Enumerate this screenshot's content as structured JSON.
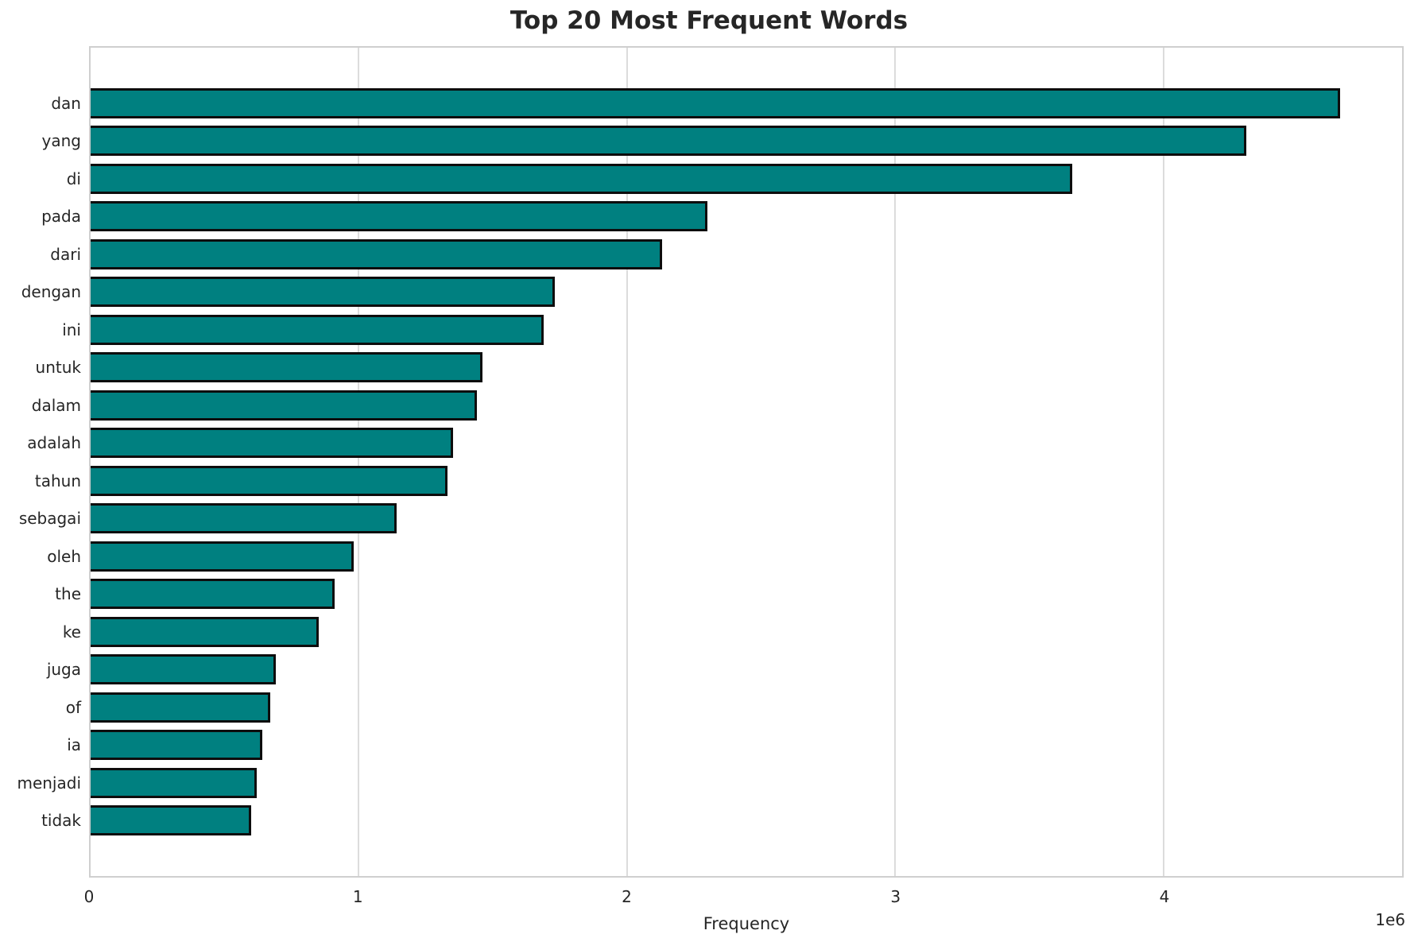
{
  "figure": {
    "title": "Top 20 Most Frequent Words",
    "xlabel": "Frequency",
    "offset_label": "1e6"
  },
  "chart_data": {
    "type": "bar",
    "orientation": "horizontal",
    "title": "Top 20 Most Frequent Words",
    "xlabel": "Frequency",
    "ylabel": "",
    "categories": [
      "dan",
      "yang",
      "di",
      "pada",
      "dari",
      "dengan",
      "ini",
      "untuk",
      "dalam",
      "adalah",
      "tahun",
      "sebagai",
      "oleh",
      "the",
      "ke",
      "juga",
      "of",
      "ia",
      "menjadi",
      "tidak"
    ],
    "values": [
      4660000,
      4310000,
      3660000,
      2300000,
      2130000,
      1730000,
      1690000,
      1460000,
      1440000,
      1350000,
      1330000,
      1140000,
      980000,
      910000,
      850000,
      690000,
      670000,
      640000,
      620000,
      600000
    ],
    "xlim": [
      0,
      4890000
    ],
    "xticks": [
      0,
      1000000,
      2000000,
      3000000,
      4000000
    ],
    "xtick_labels": [
      "0",
      "1",
      "2",
      "3",
      "4"
    ],
    "x_offset_text": "1e6",
    "grid": true,
    "grid_axis": "x",
    "legend": false,
    "bar_color": "#008080",
    "bar_edge_color": "#0d0d0d",
    "grid_color": "#dcdcdc",
    "spine_color": "#cfcfcf",
    "text_color": "#262626"
  }
}
